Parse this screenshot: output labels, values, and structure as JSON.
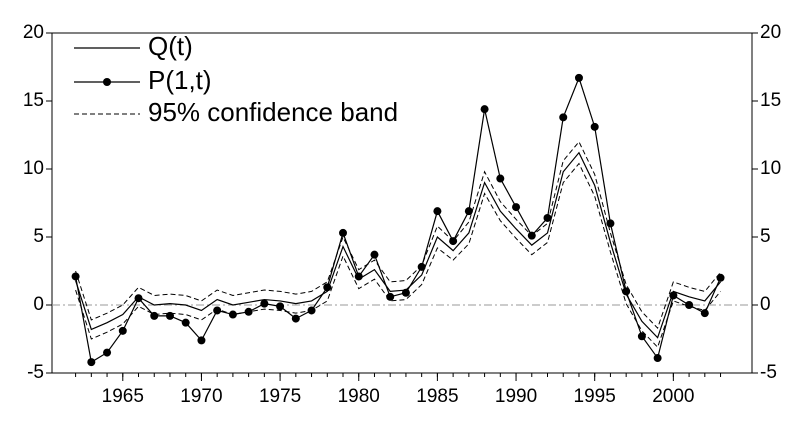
{
  "chart_data": {
    "type": "line",
    "x": [
      1962,
      1963,
      1964,
      1965,
      1966,
      1967,
      1968,
      1969,
      1970,
      1971,
      1972,
      1973,
      1974,
      1975,
      1976,
      1977,
      1978,
      1979,
      1980,
      1981,
      1982,
      1983,
      1984,
      1985,
      1986,
      1987,
      1988,
      1989,
      1990,
      1991,
      1992,
      1993,
      1994,
      1995,
      1996,
      1997,
      1998,
      1999,
      2000,
      2001,
      2002,
      2003
    ],
    "series": [
      {
        "name": "Q(t)",
        "color": "#000000",
        "marker": false,
        "values": [
          1.8,
          -1.8,
          -1.3,
          -0.7,
          0.6,
          0.0,
          0.1,
          0.0,
          -0.4,
          0.4,
          0.0,
          0.2,
          0.4,
          0.3,
          0.1,
          0.3,
          1.0,
          4.3,
          1.9,
          2.6,
          1.0,
          1.1,
          2.2,
          5.0,
          4.0,
          5.3,
          9.0,
          6.9,
          5.6,
          4.4,
          5.3,
          9.8,
          11.2,
          8.8,
          4.6,
          0.8,
          -1.2,
          -2.4,
          1.0,
          0.6,
          0.3,
          1.7
        ]
      },
      {
        "name": "P(1,t)",
        "color": "#000000",
        "marker": true,
        "values": [
          2.1,
          -4.2,
          -3.5,
          -1.9,
          0.5,
          -0.8,
          -0.8,
          -1.3,
          -2.6,
          -0.4,
          -0.7,
          -0.5,
          0.1,
          -0.1,
          -1.0,
          -0.4,
          1.3,
          5.3,
          2.1,
          3.7,
          0.6,
          0.9,
          2.8,
          6.9,
          4.7,
          6.9,
          14.4,
          9.3,
          7.2,
          5.1,
          6.4,
          13.8,
          16.7,
          13.1,
          6.0,
          1.0,
          -2.3,
          -3.9,
          0.7,
          0.0,
          -0.6,
          2.0
        ]
      }
    ],
    "band": {
      "name": "95% confidence band",
      "color": "#000000",
      "upper": [
        2.5,
        -1.1,
        -0.6,
        0.0,
        1.3,
        0.7,
        0.8,
        0.7,
        0.3,
        1.1,
        0.7,
        0.9,
        1.1,
        1.0,
        0.8,
        1.0,
        1.7,
        5.0,
        2.6,
        3.3,
        1.7,
        1.8,
        2.9,
        5.8,
        4.7,
        6.1,
        9.8,
        7.6,
        6.3,
        5.1,
        6.0,
        10.6,
        12.0,
        9.6,
        5.3,
        1.5,
        -0.5,
        -1.7,
        1.7,
        1.3,
        1.0,
        2.4
      ],
      "lower": [
        1.1,
        -2.5,
        -2.0,
        -1.4,
        -0.1,
        -0.7,
        -0.6,
        -0.7,
        -1.1,
        -0.3,
        -0.7,
        -0.5,
        -0.3,
        -0.4,
        -0.6,
        -0.4,
        0.3,
        3.6,
        1.2,
        1.9,
        0.3,
        0.4,
        1.5,
        4.2,
        3.3,
        4.5,
        8.2,
        6.2,
        4.9,
        3.7,
        4.6,
        9.0,
        10.4,
        8.0,
        3.9,
        0.1,
        -1.9,
        -3.1,
        0.3,
        -0.1,
        -0.4,
        1.0
      ]
    },
    "reference_line": 0,
    "xlim": [
      1960.5,
      2005
    ],
    "xticks": [
      1965,
      1970,
      1975,
      1980,
      1985,
      1990,
      1995,
      2000
    ],
    "ylim": [
      -5,
      20
    ],
    "yticks": [
      -5,
      0,
      5,
      10,
      15,
      20
    ],
    "y2lim": [
      -5,
      20
    ],
    "y2ticks": [
      -5,
      0,
      5,
      10,
      15,
      20
    ],
    "legend": "top-left"
  }
}
